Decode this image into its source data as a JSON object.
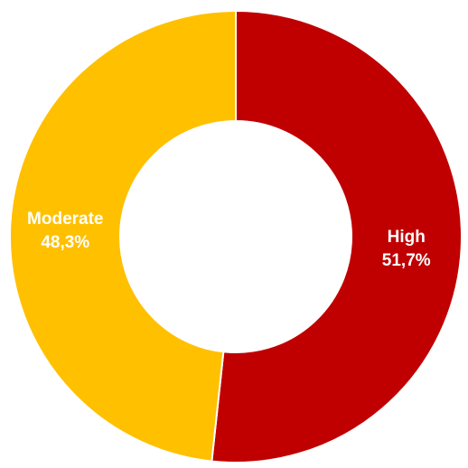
{
  "chart_data": {
    "type": "pie",
    "donut": true,
    "start": "top",
    "direction": "clockwise",
    "legend": "none",
    "grid": false,
    "slices": [
      {
        "label": "High",
        "value": 51.7,
        "value_text": "51,7%",
        "color": "#C00000"
      },
      {
        "label": "Moderate",
        "value": 48.3,
        "value_text": "48,3%",
        "color": "#FFC000"
      }
    ]
  }
}
